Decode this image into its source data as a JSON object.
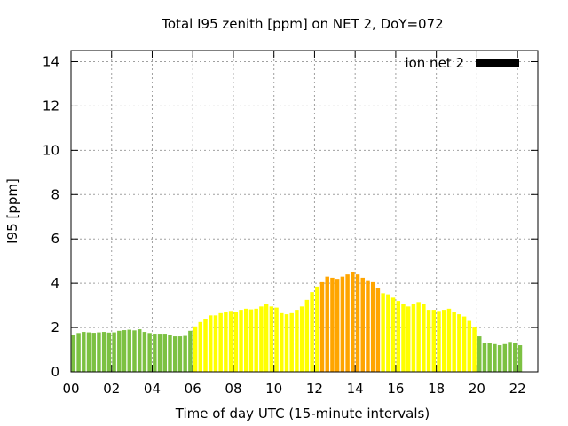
{
  "chart_data": {
    "type": "bar",
    "title": "Total I95 zenith [ppm] on NET 2, DoY=072",
    "xlabel": "Time of day UTC (15-minute intervals)",
    "ylabel": "I95 [ppm]",
    "xlim": [
      0,
      23
    ],
    "ylim": [
      0,
      14.5
    ],
    "x_ticks": [
      {
        "value": 0,
        "label": "00"
      },
      {
        "value": 2,
        "label": "02"
      },
      {
        "value": 4,
        "label": "04"
      },
      {
        "value": 6,
        "label": "06"
      },
      {
        "value": 8,
        "label": "08"
      },
      {
        "value": 10,
        "label": "10"
      },
      {
        "value": 12,
        "label": "12"
      },
      {
        "value": 14,
        "label": "14"
      },
      {
        "value": 16,
        "label": "16"
      },
      {
        "value": 18,
        "label": "18"
      },
      {
        "value": 20,
        "label": "20"
      },
      {
        "value": 22,
        "label": "22"
      }
    ],
    "y_ticks": [
      {
        "value": 0,
        "label": "0"
      },
      {
        "value": 2,
        "label": "2"
      },
      {
        "value": 4,
        "label": "4"
      },
      {
        "value": 6,
        "label": "6"
      },
      {
        "value": 8,
        "label": "8"
      },
      {
        "value": 10,
        "label": "10"
      },
      {
        "value": 12,
        "label": "12"
      },
      {
        "value": 14,
        "label": "14"
      }
    ],
    "grid": true,
    "legend": {
      "position": "top-right",
      "label": "ion net 2",
      "color": "#000000"
    },
    "colors": {
      "green": "#7cc142",
      "yellow": "#ffff00",
      "orange": "#ffa500",
      "grid": "#a0a0a0"
    },
    "series": [
      {
        "values": [
          1.65,
          1.75,
          1.8,
          1.78,
          1.76,
          1.78,
          1.8,
          1.77,
          1.78,
          1.85,
          1.88,
          1.9,
          1.87,
          1.92,
          1.8,
          1.75,
          1.72,
          1.72,
          1.72,
          1.65,
          1.6,
          1.6,
          1.62,
          1.85,
          2.05,
          2.25,
          2.4,
          2.55,
          2.55,
          2.65,
          2.7,
          2.75,
          2.7,
          2.8,
          2.85,
          2.82,
          2.85,
          2.95,
          3.05,
          2.95,
          2.9,
          2.65,
          2.6,
          2.65,
          2.8,
          2.95,
          3.25,
          3.6,
          3.85,
          4.05,
          4.3,
          4.25,
          4.2,
          4.3,
          4.4,
          4.5,
          4.4,
          4.25,
          4.1,
          4.05,
          3.8,
          3.55,
          3.5,
          3.35,
          3.2,
          3.05,
          2.95,
          3.05,
          3.15,
          3.05,
          2.8,
          2.8,
          2.75,
          2.8,
          2.85,
          2.7,
          2.6,
          2.5,
          2.3,
          2.0,
          1.6,
          1.3,
          1.3,
          1.25,
          1.2,
          1.25,
          1.35,
          1.3,
          1.2
        ],
        "levels": [
          "g",
          "g",
          "g",
          "g",
          "g",
          "g",
          "g",
          "g",
          "g",
          "g",
          "g",
          "g",
          "g",
          "g",
          "g",
          "g",
          "g",
          "g",
          "g",
          "g",
          "g",
          "g",
          "g",
          "g",
          "y",
          "y",
          "y",
          "y",
          "y",
          "y",
          "y",
          "y",
          "y",
          "y",
          "y",
          "y",
          "y",
          "y",
          "y",
          "y",
          "y",
          "y",
          "y",
          "y",
          "y",
          "y",
          "y",
          "y",
          "y",
          "o",
          "o",
          "o",
          "o",
          "o",
          "o",
          "o",
          "o",
          "o",
          "o",
          "o",
          "o",
          "y",
          "y",
          "y",
          "y",
          "y",
          "y",
          "y",
          "y",
          "y",
          "y",
          "y",
          "y",
          "y",
          "y",
          "y",
          "y",
          "y",
          "y",
          "y",
          "g",
          "g",
          "g",
          "g",
          "g",
          "g",
          "g",
          "g",
          "g"
        ]
      }
    ]
  }
}
